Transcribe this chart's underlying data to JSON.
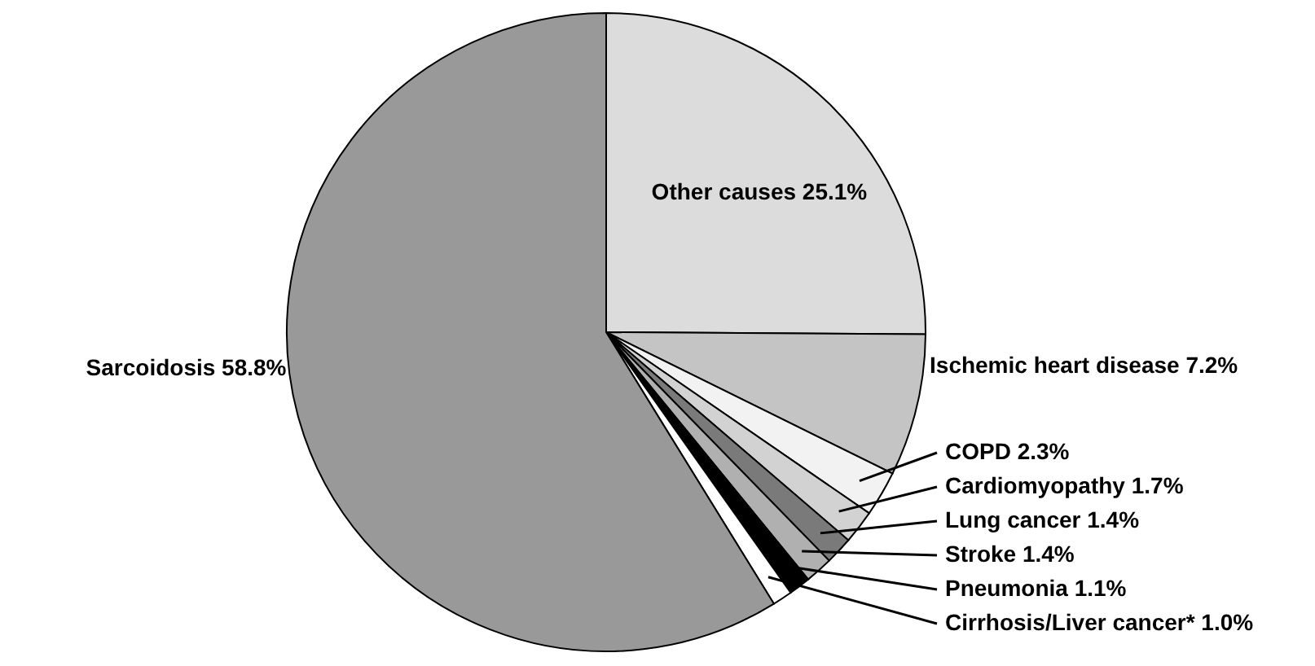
{
  "chart_data": {
    "type": "pie",
    "categories": [
      "Other causes",
      "Ischemic heart disease",
      "COPD",
      "Cardiomyopathy",
      "Lung cancer",
      "Stroke",
      "Pneumonia",
      "Cirrhosis/Liver cancer*",
      "Sarcoidosis"
    ],
    "values": [
      25.1,
      7.2,
      2.3,
      1.7,
      1.4,
      1.4,
      1.1,
      1.0,
      58.8
    ],
    "value_labels": [
      "25.1%",
      "7.2%",
      "2.3%",
      "1.7%",
      "1.4%",
      "1.4%",
      "1.1%",
      "1.0%",
      "58.8%"
    ],
    "colors": [
      "#dcdcdc",
      "#c4c4c4",
      "#f2f2f2",
      "#d2d2d2",
      "#7a7a7a",
      "#b0b0b0",
      "#000000",
      "#ffffff",
      "#999999"
    ]
  }
}
